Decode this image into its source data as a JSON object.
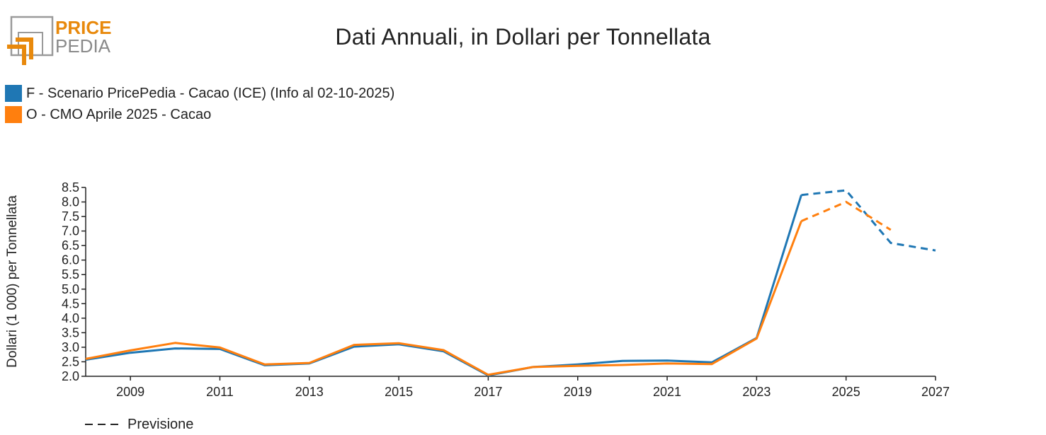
{
  "logo": {
    "line1": "PRICE",
    "line2": "PEDIA",
    "color_orange": "#E8890C",
    "color_gray": "#8A8A8A"
  },
  "chart_data": {
    "type": "line",
    "title": "Dati Annuali, in Dollari per Tonnellata",
    "ylabel": "Dollari (1 000) per Tonnellata",
    "xlabel": "",
    "xlim": [
      2008,
      2027
    ],
    "ylim": [
      2.0,
      8.5
    ],
    "x_ticks": [
      2009,
      2011,
      2013,
      2015,
      2017,
      2019,
      2021,
      2023,
      2025,
      2027
    ],
    "y_ticks": [
      "2.0",
      "2.5",
      "3.0",
      "3.5",
      "4.0",
      "4.5",
      "5.0",
      "5.5",
      "6.0",
      "6.5",
      "7.0",
      "7.5",
      "8.0",
      "8.5"
    ],
    "legend_placement": "top-left",
    "grid": false,
    "series": [
      {
        "name": "F - Scenario PricePedia - Cacao (ICE) (Info al 02-10-2025)",
        "color": "#1F77B4",
        "x": [
          2008,
          2009,
          2010,
          2011,
          2012,
          2013,
          2014,
          2015,
          2016,
          2017,
          2018,
          2019,
          2020,
          2021,
          2022,
          2023,
          2024,
          2025,
          2026,
          2027
        ],
        "values": [
          2.57,
          2.81,
          2.96,
          2.94,
          2.38,
          2.44,
          3.02,
          3.1,
          2.86,
          2.03,
          2.32,
          2.41,
          2.53,
          2.54,
          2.48,
          3.32,
          8.24,
          8.4,
          6.59,
          6.33
        ],
        "forecast_from": 2024
      },
      {
        "name": "O - CMO Aprile 2025 - Cacao",
        "color": "#FF7F0E",
        "x": [
          2008,
          2009,
          2010,
          2011,
          2012,
          2013,
          2014,
          2015,
          2016,
          2017,
          2018,
          2019,
          2020,
          2021,
          2022,
          2023,
          2024,
          2025,
          2026
        ],
        "values": [
          2.6,
          2.89,
          3.15,
          2.99,
          2.41,
          2.46,
          3.08,
          3.14,
          2.9,
          2.05,
          2.32,
          2.36,
          2.39,
          2.44,
          2.42,
          3.3,
          7.34,
          8.0,
          7.04
        ],
        "forecast_from": 2024
      }
    ],
    "forecast_note": "Previsione"
  }
}
